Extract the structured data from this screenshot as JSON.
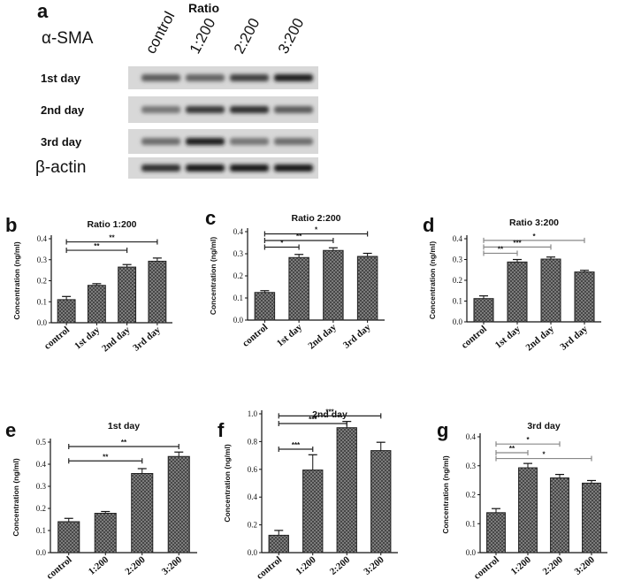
{
  "blot": {
    "letter": "a",
    "ratio_label": "Ratio",
    "protein_label": "α-SMA",
    "lanes": [
      "control",
      "1:200",
      "2:200",
      "3:200"
    ],
    "rows": [
      {
        "label": "1st day",
        "intensity": [
          0.55,
          0.5,
          0.7,
          0.9
        ]
      },
      {
        "label": "2nd day",
        "intensity": [
          0.4,
          0.75,
          0.8,
          0.55
        ]
      },
      {
        "label": "3rd day",
        "intensity": [
          0.45,
          0.9,
          0.4,
          0.45
        ]
      },
      {
        "label": "β-actin",
        "intensity": [
          0.8,
          0.95,
          0.95,
          0.92
        ]
      }
    ]
  },
  "colors": {
    "bar_fill": "#8a8a8a",
    "bar_stroke": "#222222",
    "axis": "#111111",
    "sig_dark": "#222222",
    "sig_light": "#888888"
  },
  "chart_data": [
    {
      "letter": "b",
      "type": "bar",
      "title": "Ratio 1:200",
      "ylabel": "Concentration (ng/ml)",
      "categories": [
        "control",
        "1st  day",
        "2nd day",
        "3rd day"
      ],
      "values": [
        0.11,
        0.178,
        0.265,
        0.293
      ],
      "errors": [
        0.015,
        0.008,
        0.012,
        0.015
      ],
      "ylim": [
        0,
        0.4
      ],
      "yticks": [
        "0.0",
        "0.1",
        "0.2",
        "0.3",
        "0.4"
      ],
      "significance": [
        {
          "from": 0,
          "to": 3,
          "label": "**",
          "y": 0.385,
          "tone": "dark"
        },
        {
          "from": 0,
          "to": 2,
          "label": "**",
          "y": 0.345,
          "tone": "dark"
        }
      ]
    },
    {
      "letter": "c",
      "type": "bar",
      "title": "Ratio 2:200",
      "ylabel": "Concentration (ng/ml)",
      "categories": [
        "control",
        "1st  day",
        "2nd day",
        "3rd day"
      ],
      "values": [
        0.125,
        0.283,
        0.315,
        0.288
      ],
      "errors": [
        0.008,
        0.014,
        0.012,
        0.014
      ],
      "ylim": [
        0,
        0.4
      ],
      "yticks": [
        "0.0",
        "0.1",
        "0.2",
        "0.3",
        "0.4"
      ],
      "significance": [
        {
          "from": 0,
          "to": 3,
          "label": "*",
          "y": 0.39,
          "tone": "dark"
        },
        {
          "from": 0,
          "to": 2,
          "label": "**",
          "y": 0.36,
          "tone": "dark"
        },
        {
          "from": 0,
          "to": 1,
          "label": "*",
          "y": 0.33,
          "tone": "dark"
        }
      ]
    },
    {
      "letter": "d",
      "type": "bar",
      "title": "Ratio 3:200",
      "ylabel": "Concentration (ng/ml)",
      "categories": [
        "control",
        "1st  day",
        "2nd  day",
        "3rd  day"
      ],
      "values": [
        0.112,
        0.288,
        0.302,
        0.24
      ],
      "errors": [
        0.013,
        0.012,
        0.01,
        0.008
      ],
      "ylim": [
        0,
        0.4
      ],
      "yticks": [
        "0.0",
        "0.1",
        "0.2",
        "0.3",
        "0.4"
      ],
      "significance": [
        {
          "from": 0,
          "to": 3,
          "label": "*",
          "y": 0.392,
          "tone": "light"
        },
        {
          "from": 0,
          "to": 2,
          "label": "***",
          "y": 0.36,
          "tone": "light"
        },
        {
          "from": 0,
          "to": 1,
          "label": "**",
          "y": 0.33,
          "tone": "light"
        }
      ]
    },
    {
      "letter": "e",
      "type": "bar",
      "title": "1st day",
      "ylabel": "Concentration (ng/ml)",
      "categories": [
        "control",
        "1:200",
        "2:200",
        "3:200"
      ],
      "values": [
        0.14,
        0.178,
        0.358,
        0.435
      ],
      "errors": [
        0.015,
        0.008,
        0.022,
        0.02
      ],
      "ylim": [
        0,
        0.5
      ],
      "yticks": [
        "0.0",
        "0.1",
        "0.2",
        "0.3",
        "0.4",
        "0.5"
      ],
      "significance": [
        {
          "from": 0,
          "to": 3,
          "label": "**",
          "y": 0.48,
          "tone": "dark"
        },
        {
          "from": 0,
          "to": 2,
          "label": "**",
          "y": 0.415,
          "tone": "dark"
        }
      ]
    },
    {
      "letter": "f",
      "type": "bar",
      "title": "2nd day",
      "ylabel": "Concentration  (ng/ml)",
      "categories": [
        "control",
        "1:200",
        "2:200",
        "3:200"
      ],
      "values": [
        0.125,
        0.595,
        0.9,
        0.735
      ],
      "errors": [
        0.035,
        0.11,
        0.045,
        0.06
      ],
      "ylim": [
        0,
        1.0
      ],
      "yticks": [
        "0.0",
        "0.2",
        "0.4",
        "0.6",
        "0.8",
        "1.0"
      ],
      "significance": [
        {
          "from": 0,
          "to": 3,
          "label": "***",
          "y": 0.985,
          "tone": "dark"
        },
        {
          "from": 0,
          "to": 2,
          "label": "***",
          "y": 0.93,
          "tone": "dark"
        },
        {
          "from": 0,
          "to": 1,
          "label": "***",
          "y": 0.745,
          "tone": "dark"
        }
      ]
    },
    {
      "letter": "g",
      "type": "bar",
      "title": "3rd day",
      "ylabel": "Concentration (ng/ml)",
      "categories": [
        "control",
        "1:200",
        "2:200",
        "3:200"
      ],
      "values": [
        0.138,
        0.293,
        0.258,
        0.24
      ],
      "errors": [
        0.014,
        0.015,
        0.012,
        0.009
      ],
      "ylim": [
        0,
        0.4
      ],
      "yticks": [
        "0.0",
        "0.1",
        "0.2",
        "0.3",
        "0.4"
      ],
      "significance": [
        {
          "from": 0,
          "to": 2,
          "label": "*",
          "y": 0.375,
          "tone": "light"
        },
        {
          "from": 0,
          "to": 1,
          "label": "**",
          "y": 0.345,
          "tone": "light"
        },
        {
          "from": 0,
          "to": 3,
          "label": "*",
          "y": 0.325,
          "tone": "light"
        }
      ]
    }
  ]
}
